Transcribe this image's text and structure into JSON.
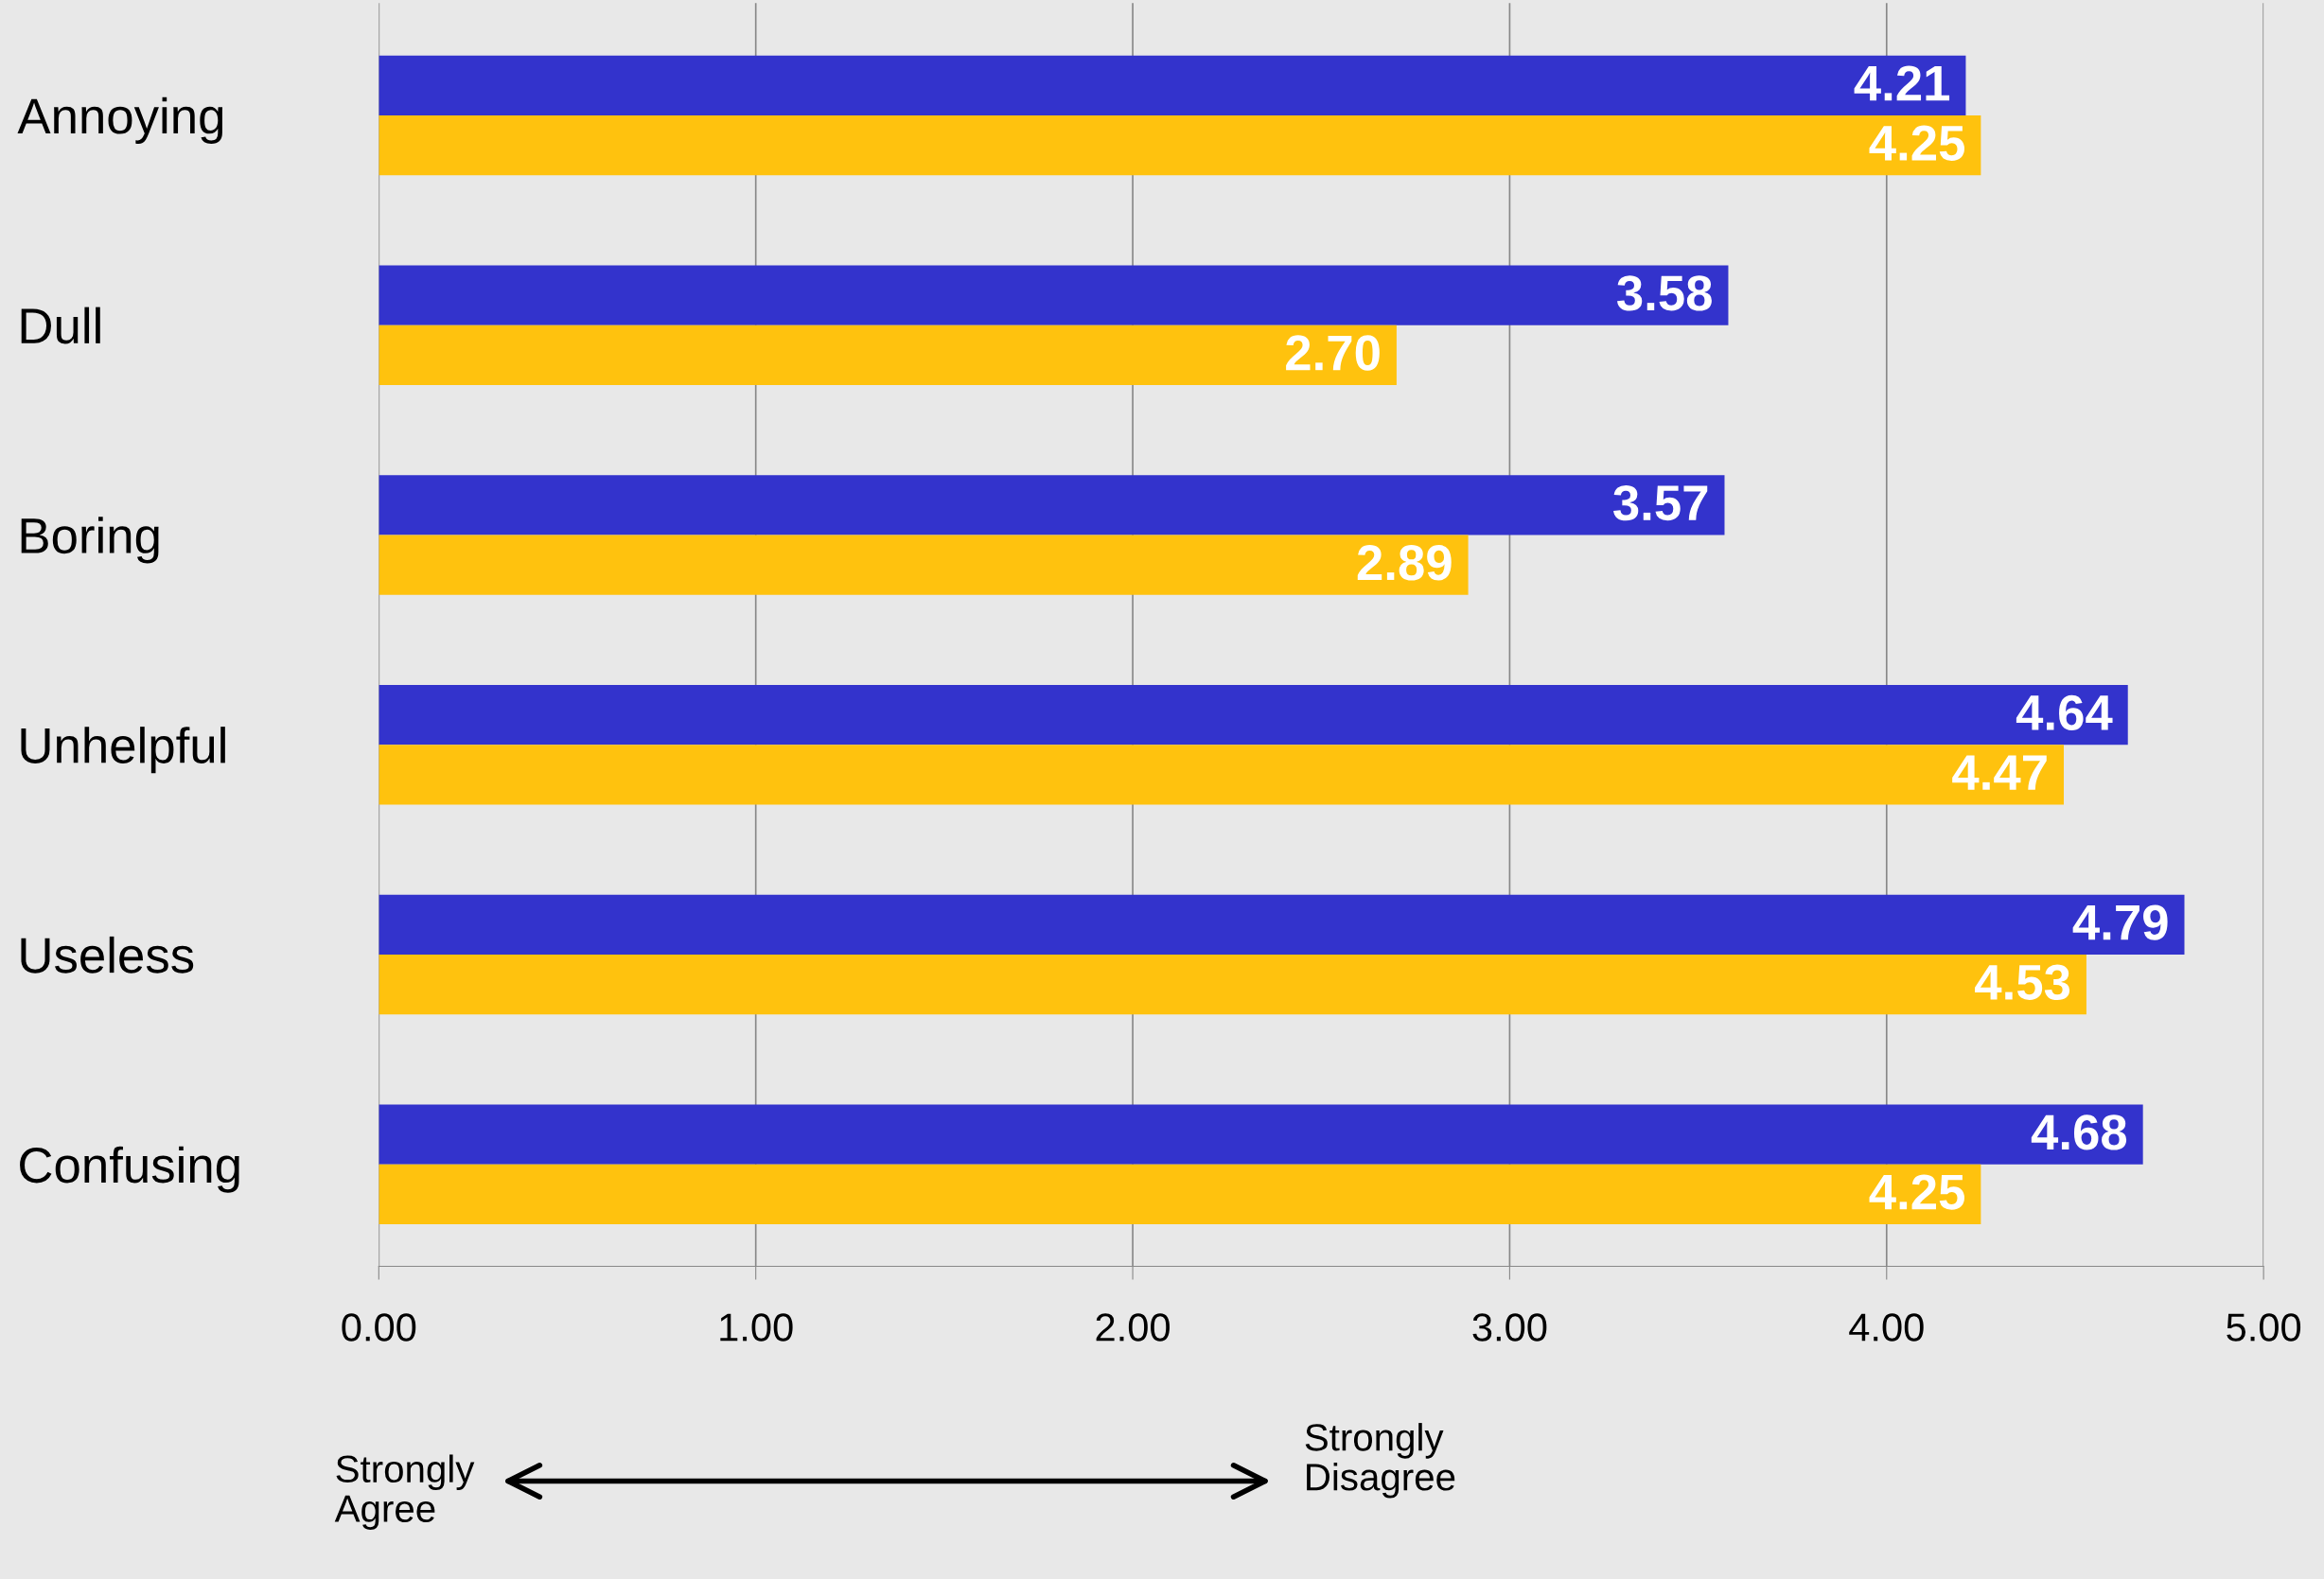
{
  "chart_data": {
    "type": "bar",
    "orientation": "horizontal",
    "categories": [
      "Annoying",
      "Dull",
      "Boring",
      "Unhelpful",
      "Useless",
      "Confusing"
    ],
    "series": [
      {
        "color": "#3333cc",
        "values": [
          4.21,
          3.58,
          3.57,
          4.64,
          4.79,
          4.68
        ],
        "value_labels": [
          "4.21",
          "3.58",
          "3.57",
          "4.64",
          "4.79",
          "4.68"
        ]
      },
      {
        "color": "#ffc20e",
        "values": [
          4.25,
          2.7,
          2.89,
          4.47,
          4.53,
          4.25
        ],
        "value_labels": [
          "4.25",
          "2.70",
          "2.89",
          "4.47",
          "4.53",
          "4.25"
        ]
      }
    ],
    "xlim": [
      0,
      5
    ],
    "xticks": [
      {
        "value": 0,
        "label": "0.00"
      },
      {
        "value": 1,
        "label": "1.00"
      },
      {
        "value": 2,
        "label": "2.00"
      },
      {
        "value": 3,
        "label": "3.00"
      },
      {
        "value": 4,
        "label": "4.00"
      },
      {
        "value": 5,
        "label": "5.00"
      }
    ],
    "grid": "x",
    "annotations": [
      "Strongly\nAgree",
      "Strongly\nDisagree"
    ]
  }
}
